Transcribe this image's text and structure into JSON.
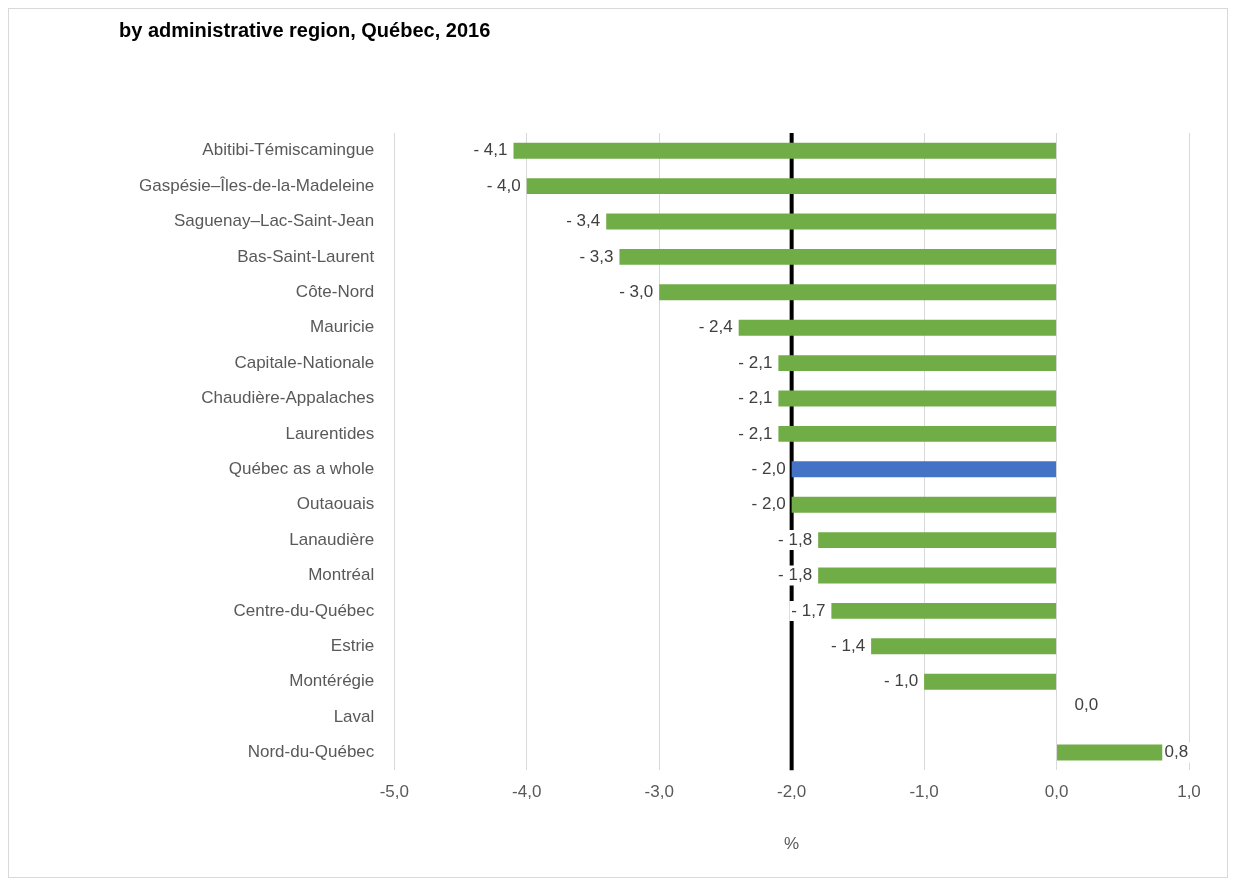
{
  "chart_data": {
    "type": "bar",
    "orientation": "horizontal",
    "title": "by administrative region, Québec, 2016",
    "xlabel": "%",
    "categories": [
      "Abitibi-Témiscamingue",
      "Gaspésie–Îles-de-la-Madeleine",
      "Saguenay–Lac-Saint-Jean",
      "Bas-Saint-Laurent",
      "Côte-Nord",
      "Mauricie",
      "Capitale-Nationale",
      "Chaudière-Appalaches",
      "Laurentides",
      "Québec as a whole",
      "Outaouais",
      "Lanaudière",
      "Montréal",
      "Centre-du-Québec",
      "Estrie",
      "Montérégie",
      "Laval",
      "Nord-du-Québec"
    ],
    "values": [
      -4.1,
      -4.0,
      -3.4,
      -3.3,
      -3.0,
      -2.4,
      -2.1,
      -2.1,
      -2.1,
      -2.0,
      -2.0,
      -1.8,
      -1.8,
      -1.7,
      -1.4,
      -1.0,
      0.0,
      0.8
    ],
    "value_labels": [
      "- 4,1",
      "- 4,0",
      "- 3,4",
      "- 3,3",
      "- 3,0",
      "- 2,4",
      "- 2,1",
      "- 2,1",
      "- 2,1",
      "- 2,0",
      "- 2,0",
      "- 1,8",
      "- 1,8",
      "- 1,7",
      "- 1,4",
      "- 1,0",
      "0,0",
      "0,8"
    ],
    "colors": [
      "#70ad47",
      "#70ad47",
      "#70ad47",
      "#70ad47",
      "#70ad47",
      "#70ad47",
      "#70ad47",
      "#70ad47",
      "#70ad47",
      "#4472c4",
      "#70ad47",
      "#70ad47",
      "#70ad47",
      "#70ad47",
      "#70ad47",
      "#70ad47",
      "#70ad47",
      "#70ad47"
    ],
    "xlim": [
      -5,
      1
    ],
    "xticks": [
      {
        "value": -5,
        "label": "-5,0"
      },
      {
        "value": -4,
        "label": "-4,0"
      },
      {
        "value": -3,
        "label": "-3,0"
      },
      {
        "value": -2,
        "label": "-2,0"
      },
      {
        "value": -1,
        "label": "-1,0"
      },
      {
        "value": 0,
        "label": "0,0"
      },
      {
        "value": 1,
        "label": "1,0"
      }
    ],
    "ref_lines": [
      {
        "axis": "x",
        "value": -2.0,
        "color": "#000000"
      }
    ],
    "grid": "x"
  }
}
